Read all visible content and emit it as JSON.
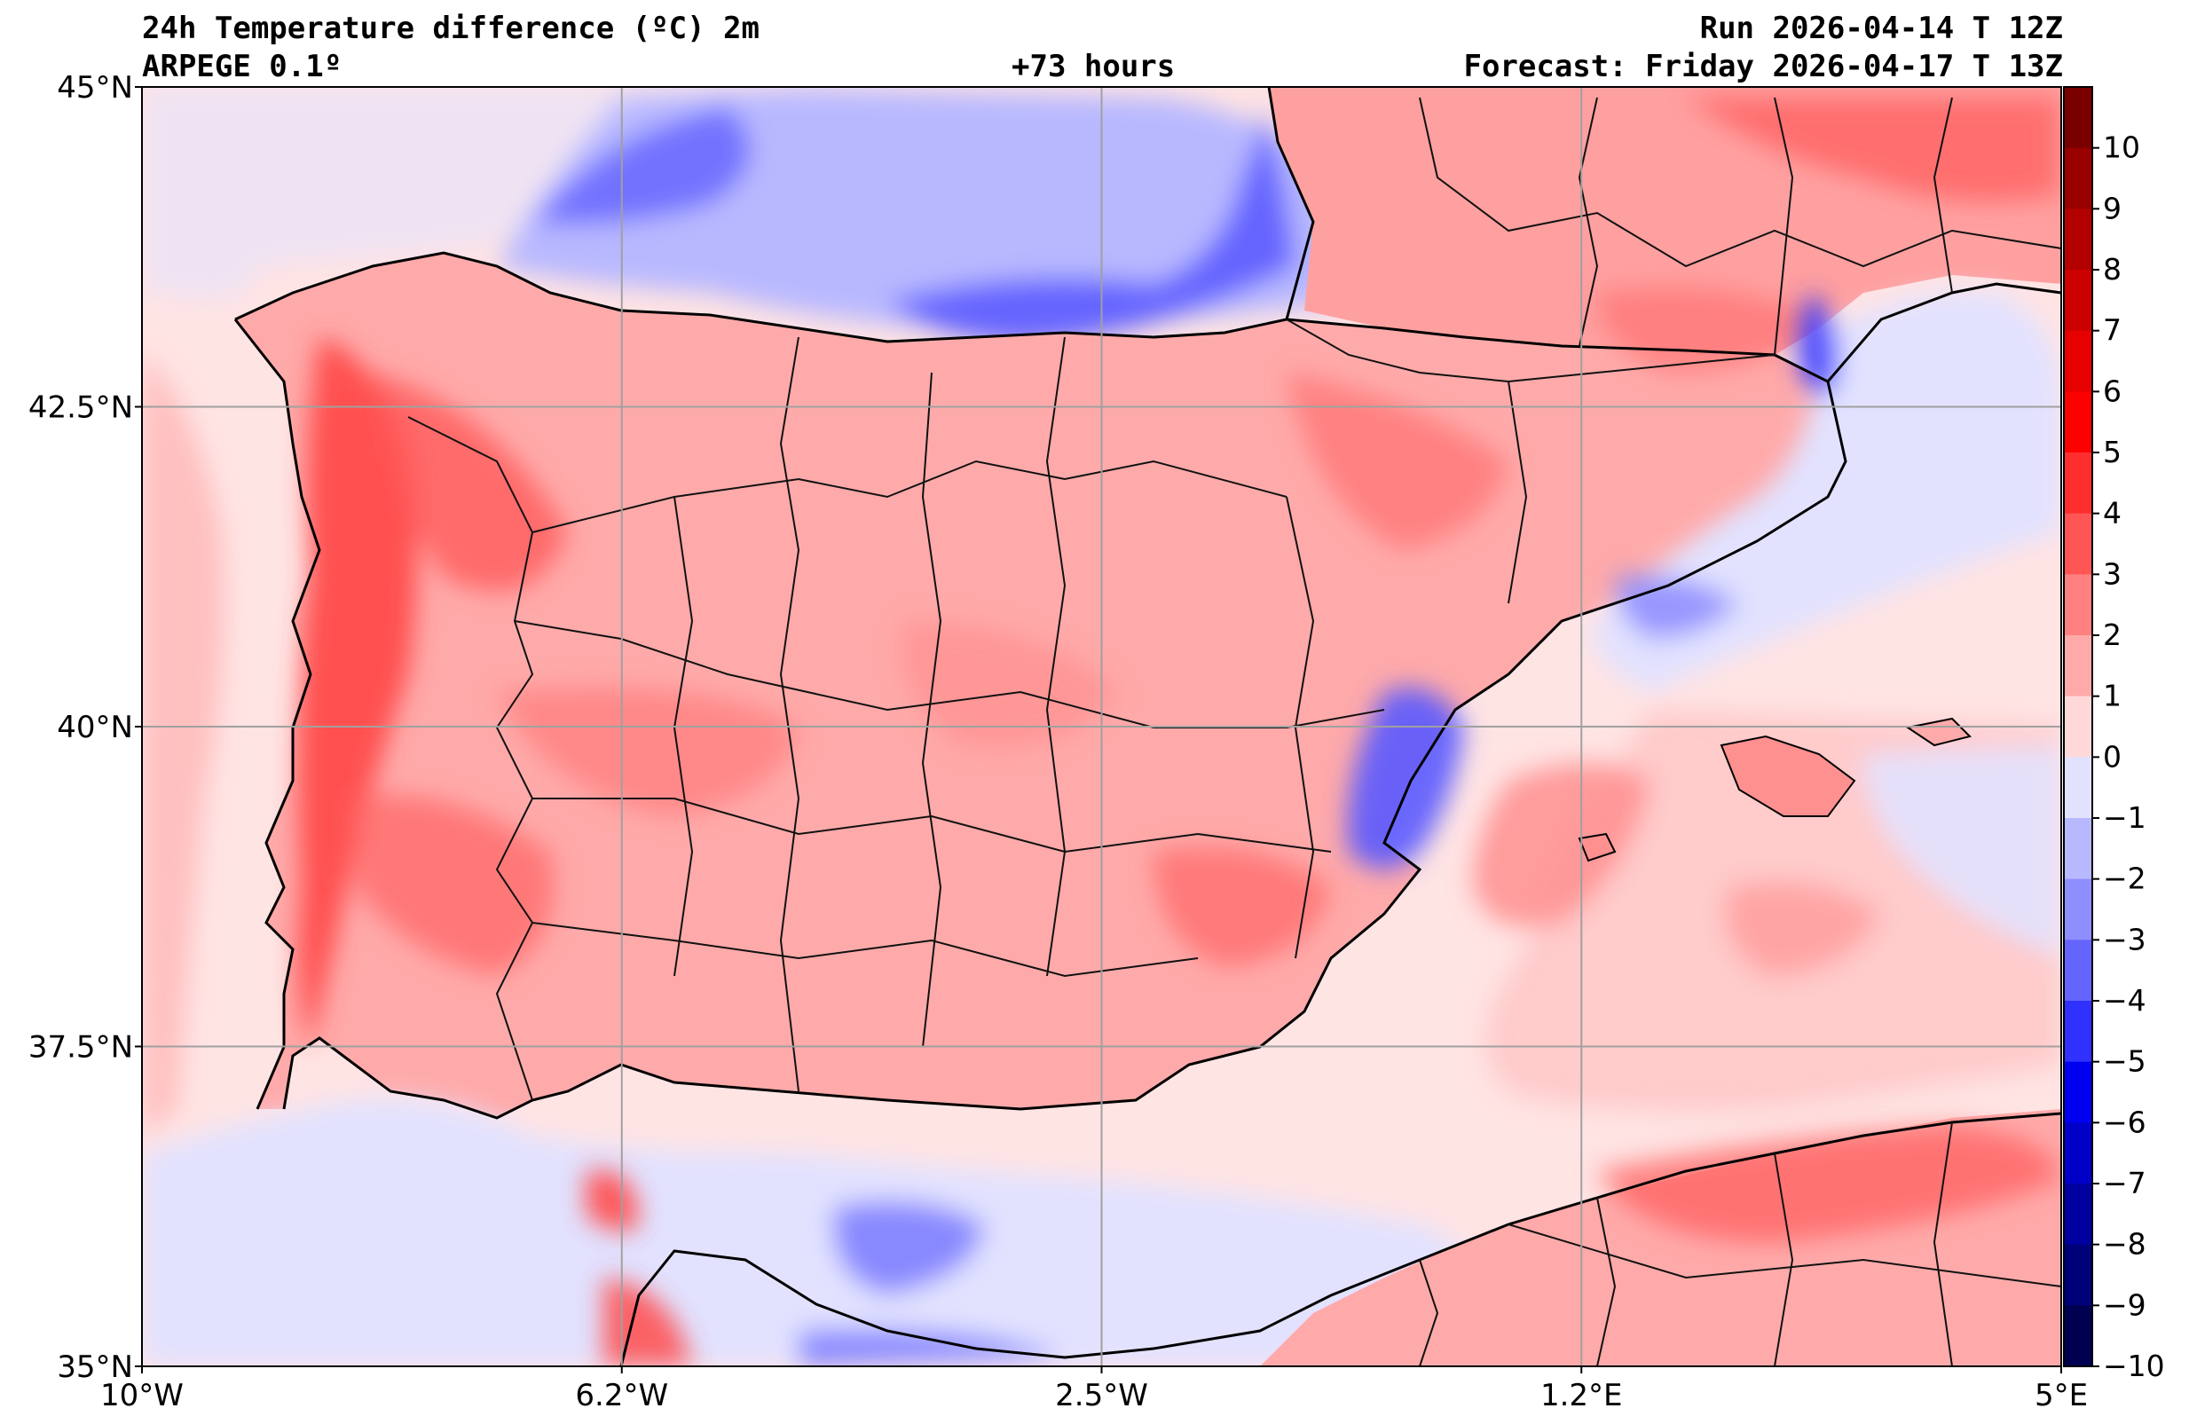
{
  "header": {
    "title": "24h Temperature difference (ºC) 2m",
    "model": "ARPEGE 0.1º",
    "lead_time": "+73 hours",
    "run": "Run 2026-04-14 T 12Z",
    "forecast": "Forecast: Friday 2026-04-17 T 13Z"
  },
  "map": {
    "lon_range": [
      -10,
      5
    ],
    "lat_range": [
      35,
      45
    ],
    "lon_ticks": [
      {
        "value": -10,
        "label": "10°W"
      },
      {
        "value": -6.25,
        "label": "6.2°W"
      },
      {
        "value": -2.5,
        "label": "2.5°W"
      },
      {
        "value": 1.25,
        "label": "1.2°E"
      },
      {
        "value": 5,
        "label": "5°E"
      }
    ],
    "lat_ticks": [
      {
        "value": 45,
        "label": "45°N"
      },
      {
        "value": 42.5,
        "label": "42.5°N"
      },
      {
        "value": 40,
        "label": "40°N"
      },
      {
        "value": 37.5,
        "label": "37.5°N"
      },
      {
        "value": 35,
        "label": "35°N"
      }
    ]
  },
  "colorbar": {
    "levels": [
      "10",
      "9",
      "8",
      "7",
      "6",
      "5",
      "4",
      "3",
      "2",
      "1",
      "0",
      "−1",
      "−2",
      "−3",
      "−4",
      "−5",
      "−6",
      "−7",
      "−8",
      "−9",
      "−10"
    ],
    "colors": [
      "#7a0000",
      "#990000",
      "#b30000",
      "#cc0000",
      "#e60000",
      "#ff0000",
      "#ff2e2e",
      "#ff5555",
      "#ff8080",
      "#ffaaaa",
      "#ffd9d9",
      "#e2e2ff",
      "#b8b8ff",
      "#8e8eff",
      "#6464ff",
      "#3030ff",
      "#0000f0",
      "#0000c8",
      "#0000a0",
      "#000078",
      "#000050"
    ]
  }
}
